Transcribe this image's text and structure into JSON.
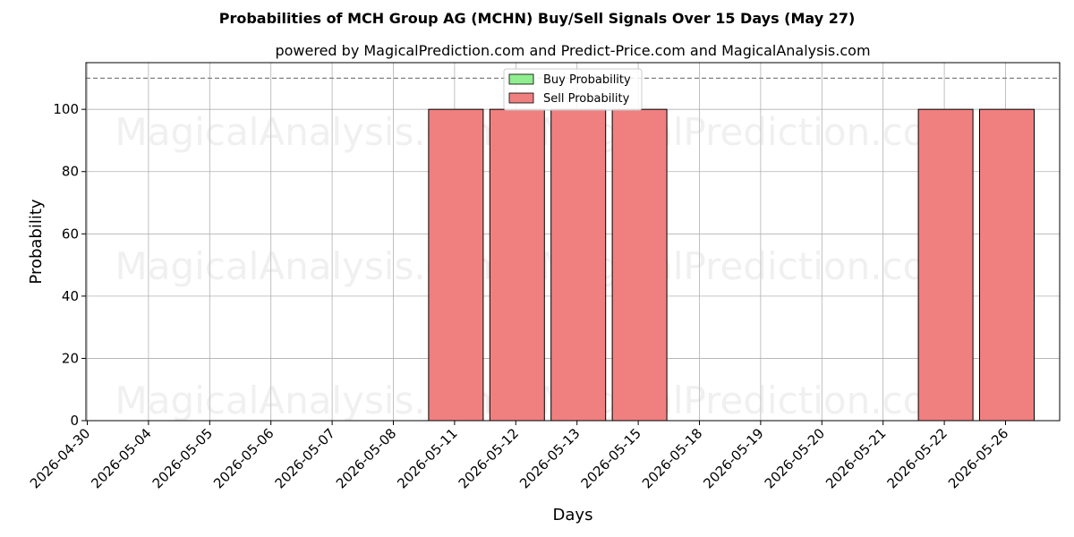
{
  "chart_data": {
    "type": "bar",
    "title": "Probabilities of MCH Group AG (MCHN) Buy/Sell Signals Over 15 Days (May 27)",
    "subtitle": "powered by MagicalPrediction.com and Predict-Price.com and MagicalAnalysis.com",
    "xlabel": "Days",
    "ylabel": "Probability",
    "categories": [
      "2026-04-30",
      "2026-05-04",
      "2026-05-05",
      "2026-05-06",
      "2026-05-07",
      "2026-05-08",
      "2026-05-11",
      "2026-05-12",
      "2026-05-13",
      "2026-05-15",
      "2026-05-18",
      "2026-05-19",
      "2026-05-20",
      "2026-05-21",
      "2026-05-22",
      "2026-05-26"
    ],
    "series": [
      {
        "name": "Buy Probability",
        "color": "#90ee90",
        "values": [
          0,
          0,
          0,
          0,
          0,
          0,
          0,
          0,
          0,
          0,
          0,
          0,
          0,
          0,
          0,
          0
        ]
      },
      {
        "name": "Sell Probability",
        "color": "#f08080",
        "values": [
          0,
          0,
          0,
          0,
          0,
          0,
          100,
          100,
          100,
          100,
          0,
          0,
          0,
          0,
          100,
          100
        ]
      }
    ],
    "ylim": [
      0,
      115
    ],
    "yticks": [
      0,
      20,
      40,
      60,
      80,
      100
    ],
    "reference_line": 110,
    "grid": true,
    "legend_position": "top-center",
    "watermarks": [
      "MagicalAnalysis.com",
      "MagicalPrediction.com"
    ]
  }
}
